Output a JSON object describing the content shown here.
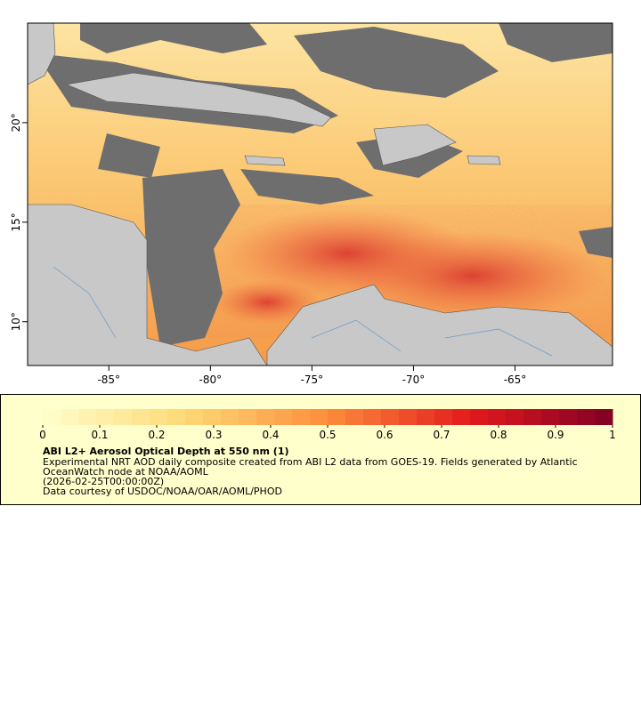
{
  "map": {
    "xlim": [
      -89,
      -60.2
    ],
    "ylim": [
      7.8,
      25
    ],
    "xticks": [
      {
        "value": -85,
        "label": "-85°"
      },
      {
        "value": -80,
        "label": "-80°"
      },
      {
        "value": -75,
        "label": "-75°"
      },
      {
        "value": -70,
        "label": "-70°"
      },
      {
        "value": -65,
        "label": "-65°"
      }
    ],
    "yticks": [
      {
        "value": 10,
        "label": "10°"
      },
      {
        "value": 15,
        "label": "15°"
      },
      {
        "value": 20,
        "label": "20°"
      }
    ]
  },
  "legend": {
    "colorbar": {
      "range": [
        0,
        1
      ],
      "ticks": [
        0,
        0.1,
        0.2,
        0.3,
        0.4,
        0.5,
        0.6,
        0.7,
        0.8,
        0.9,
        1
      ]
    },
    "title": "ABI L2+ Aerosol Optical Depth at 550 nm (1)",
    "lines": [
      "Experimental NRT AOD daily composite created from ABI L2 data from GOES-19. Fields generated by Atlantic",
      "OceanWatch node at NOAA/AOML",
      "(2026-02-25T00:00:00Z)",
      "Data courtesy of USDOC/NOAA/OAR/AOML/PHOD"
    ]
  }
}
